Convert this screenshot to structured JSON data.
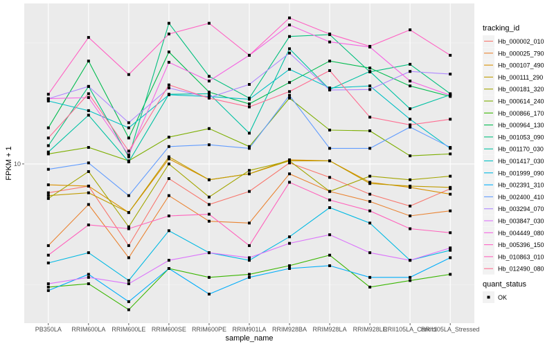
{
  "chart_data": {
    "type": "line",
    "title": "",
    "xlabel": "sample_name",
    "ylabel": "FPKM + 1",
    "yscale": "log10",
    "ylim": [
      2.2,
      46
    ],
    "y_ticks": [
      10
    ],
    "y_tick_labels": [
      "10"
    ],
    "grid": true,
    "legend_placement": "right",
    "categories": [
      "PB350LA",
      "RRIM600LA",
      "RRIM600LE",
      "RRIM600SE",
      "RRIM600PE",
      "RRIM901LA",
      "RRIM928BA",
      "RRIM928LA",
      "RRIM928LE",
      "RRII105LA_Control",
      "RRII105LA_Stressed"
    ],
    "color_legend_title": "tracking_id",
    "shape_legend_title": "quant_status",
    "shape_legend_items": [
      {
        "label": "OK",
        "shape": "square"
      }
    ],
    "series": [
      {
        "name": "Hb_000002_010",
        "color": "#F8766D",
        "values": [
          7.6,
          8.1,
          4.6,
          8.7,
          6.8,
          7.7,
          10.1,
          8.8,
          7.5,
          6.7,
          7.9
        ]
      },
      {
        "name": "Hb_000025_790",
        "color": "#EA8331",
        "values": [
          4.6,
          6.8,
          4.1,
          7.4,
          5.8,
          5.7,
          9.1,
          7.7,
          7.0,
          6.1,
          6.4
        ]
      },
      {
        "name": "Hb_000107_490",
        "color": "#D89000",
        "values": [
          8.2,
          8.1,
          6.3,
          10.5,
          8.6,
          9.1,
          10.4,
          10.3,
          8.4,
          8.0,
          7.5
        ]
      },
      {
        "name": "Hb_000111_290",
        "color": "#C09B00",
        "values": [
          7.4,
          7.6,
          6.3,
          10.7,
          8.6,
          9.1,
          10.3,
          10.3,
          8.3,
          8.1,
          8.0
        ]
      },
      {
        "name": "Hb_000181_320",
        "color": "#A3A500",
        "values": [
          7.2,
          9.3,
          5.5,
          10.0,
          7.3,
          9.4,
          10.3,
          7.7,
          8.9,
          8.6,
          8.9
        ]
      },
      {
        "name": "Hb_000614_240",
        "color": "#7CAE00",
        "values": [
          11.0,
          11.7,
          10.3,
          12.9,
          14.0,
          11.8,
          18.7,
          13.8,
          13.7,
          10.8,
          11.0
        ]
      },
      {
        "name": "Hb_000866_170",
        "color": "#39B600",
        "values": [
          3.1,
          3.2,
          2.5,
          3.7,
          3.4,
          3.5,
          3.8,
          4.2,
          3.1,
          3.3,
          3.5
        ]
      },
      {
        "name": "Hb_000964_130",
        "color": "#00BB4E",
        "values": [
          14.1,
          26.6,
          12.8,
          29.0,
          19.8,
          17.7,
          21.7,
          26.6,
          24.9,
          21.0,
          19.0
        ]
      },
      {
        "name": "Hb_001053_090",
        "color": "#00BF7D",
        "values": [
          11.9,
          20.9,
          10.7,
          38.1,
          23.0,
          18.7,
          33.6,
          34.2,
          24.0,
          25.8,
          19.5
        ]
      },
      {
        "name": "Hb_001170_030",
        "color": "#00C1A3",
        "values": [
          11.2,
          15.9,
          10.2,
          19.4,
          19.5,
          13.4,
          29.9,
          20.3,
          24.1,
          16.9,
          19.3
        ]
      },
      {
        "name": "Hb_001417_030",
        "color": "#00BFC4",
        "values": [
          18.2,
          16.6,
          14.1,
          19.3,
          19.0,
          18.5,
          24.6,
          20.6,
          21.0,
          15.3,
          11.6
        ]
      },
      {
        "name": "Hb_001999_090",
        "color": "#00B9E3",
        "values": [
          3.9,
          4.3,
          3.3,
          5.3,
          4.3,
          4.0,
          5.0,
          6.6,
          5.7,
          4.0,
          4.4
        ]
      },
      {
        "name": "Hb_002391_310",
        "color": "#00ADFA",
        "values": [
          3.0,
          3.5,
          2.7,
          3.7,
          2.9,
          3.4,
          3.7,
          3.8,
          3.4,
          3.4,
          4.1
        ]
      },
      {
        "name": "Hb_002400_410",
        "color": "#619CFF",
        "values": [
          9.5,
          10.1,
          7.4,
          11.8,
          12.0,
          11.6,
          19.2,
          11.6,
          11.6,
          14.2,
          11.7
        ]
      },
      {
        "name": "Hb_003294_070",
        "color": "#AE87FF",
        "values": [
          18.6,
          20.9,
          14.8,
          20.6,
          18.8,
          21.3,
          28.7,
          20.2,
          20.3,
          24.1,
          23.5
        ]
      },
      {
        "name": "Hb_003847_030",
        "color": "#DB72FB",
        "values": [
          3.2,
          3.4,
          3.2,
          4.0,
          4.3,
          4.1,
          4.7,
          5.1,
          4.3,
          4.0,
          4.5
        ]
      },
      {
        "name": "Hb_004449_080",
        "color": "#F564E3",
        "values": [
          18.6,
          18.8,
          10.9,
          26.3,
          22.0,
          28.1,
          37.5,
          31.9,
          30.4,
          22.0,
          19.2
        ]
      },
      {
        "name": "Hb_005396_150",
        "color": "#FF61C3",
        "values": [
          19.4,
          33.3,
          23.4,
          34.4,
          38.1,
          28.1,
          40.1,
          34.4,
          30.6,
          35.8,
          28.1
        ]
      },
      {
        "name": "Hb_010863_010",
        "color": "#FF62BC",
        "values": [
          4.2,
          5.6,
          5.4,
          6.1,
          6.2,
          4.6,
          8.4,
          7.1,
          6.4,
          5.4,
          5.2
        ]
      },
      {
        "name": "Hb_012490_080",
        "color": "#FF6C91",
        "values": [
          12.8,
          19.5,
          11.3,
          21.2,
          18.7,
          17.2,
          19.9,
          24.3,
          15.6,
          14.5,
          15.3
        ]
      }
    ]
  }
}
